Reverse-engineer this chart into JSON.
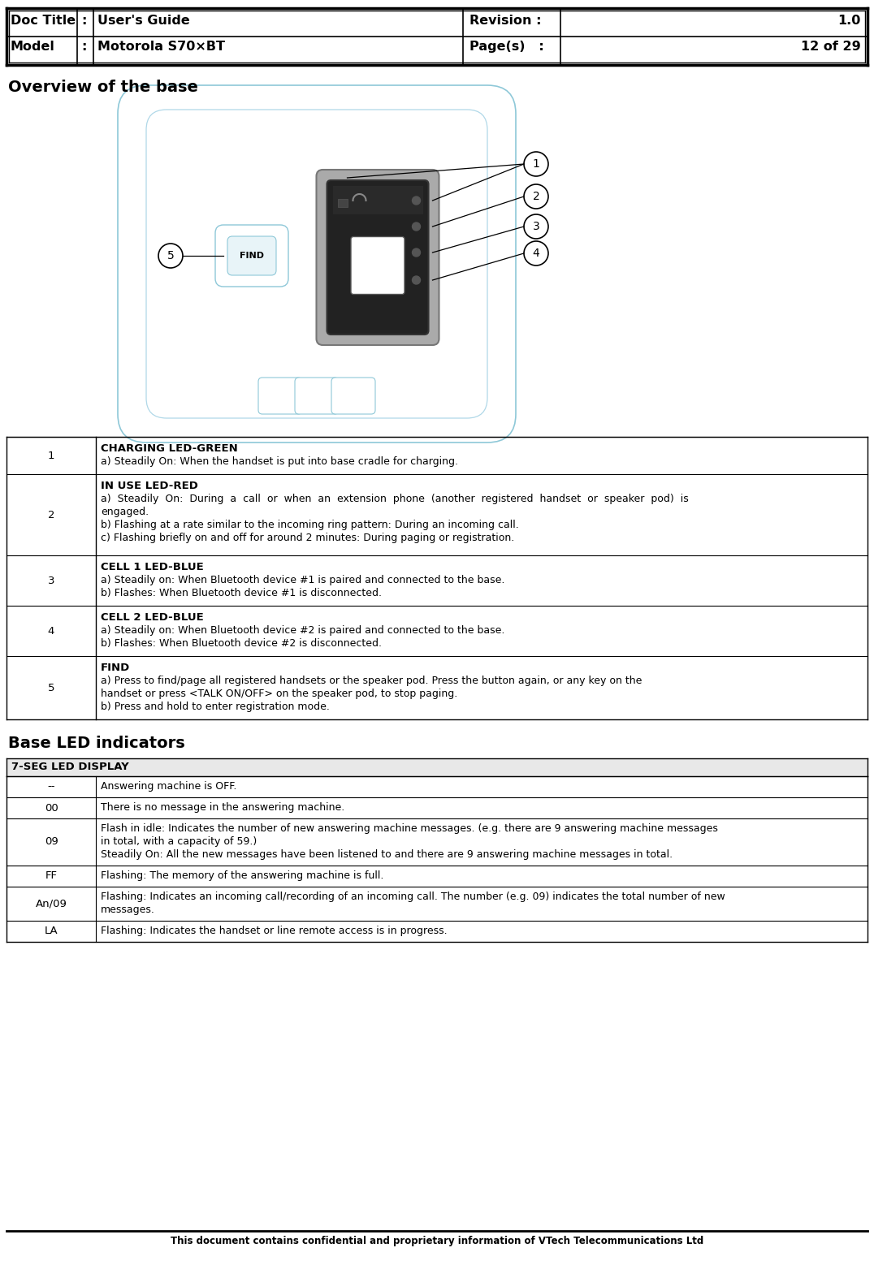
{
  "header": {
    "doc_title_label": "Doc Title",
    "colon1": ":",
    "doc_title_value": "User's Guide",
    "model_label": "Model",
    "colon2": ":",
    "model_value": "Motorola S70×BT",
    "revision_label": "Revision :",
    "revision_value": "1.0",
    "pages_label": "Page(s)   :",
    "pages_value": "12 of 29"
  },
  "section_title": "Overview of the base",
  "section2_title": "Base LED indicators",
  "table1_rows": [
    {
      "num": "1",
      "bold_line": "CHARGING LED-GREEN",
      "lines": [
        "a) Steadily On: When the handset is put into base cradle for charging."
      ]
    },
    {
      "num": "2",
      "bold_line": "IN USE LED-RED",
      "lines": [
        "a)  Steadily  On:  During  a  call  or  when  an  extension  phone  (another  registered  handset  or  speaker  pod)  is",
        "engaged.",
        "b) Flashing at a rate similar to the incoming ring pattern: During an incoming call.",
        "c) Flashing briefly on and off for around 2 minutes: During paging or registration."
      ]
    },
    {
      "num": "3",
      "bold_line": "CELL 1 LED-BLUE",
      "lines": [
        "a) Steadily on: When Bluetooth device #1 is paired and connected to the base.",
        "b) Flashes: When Bluetooth device #1 is disconnected."
      ]
    },
    {
      "num": "4",
      "bold_line": "CELL 2 LED-BLUE",
      "lines": [
        "a) Steadily on: When Bluetooth device #2 is paired and connected to the base.",
        "b) Flashes: When Bluetooth device #2 is disconnected."
      ]
    },
    {
      "num": "5",
      "bold_line": "FIND",
      "lines": [
        "a) Press to find/page all registered handsets or the speaker pod. Press the button again, or any key on the",
        "handset or press <TALK ON/OFF> on the speaker pod, to stop paging.",
        "b) Press and hold to enter registration mode."
      ]
    }
  ],
  "table2_header": "7-SEG LED DISPLAY",
  "table2_rows": [
    {
      "code": "--",
      "lines": [
        "Answering machine is OFF."
      ]
    },
    {
      "code": "00",
      "lines": [
        "There is no message in the answering machine."
      ]
    },
    {
      "code": "09",
      "lines": [
        "Flash in idle: Indicates the number of new answering machine messages. (e.g. there are 9 answering machine messages",
        "in total, with a capacity of 59.)",
        "Steadily On: All the new messages have been listened to and there are 9 answering machine messages in total."
      ]
    },
    {
      "code": "FF",
      "lines": [
        "Flashing: The memory of the answering machine is full."
      ]
    },
    {
      "code": "An/09",
      "lines": [
        "Flashing: Indicates an incoming call/recording of an incoming call. The number (e.g. 09) indicates the total number of new",
        "messages."
      ]
    },
    {
      "code": "LA",
      "lines": [
        "Flashing: Indicates the handset or line remote access is in progress."
      ]
    }
  ],
  "footer_text": "This document contains confidential and proprietary information of VTech Telecommunications Ltd",
  "diagram_color": "#8ec8d8",
  "diagram_color2": "#b0d8e8"
}
